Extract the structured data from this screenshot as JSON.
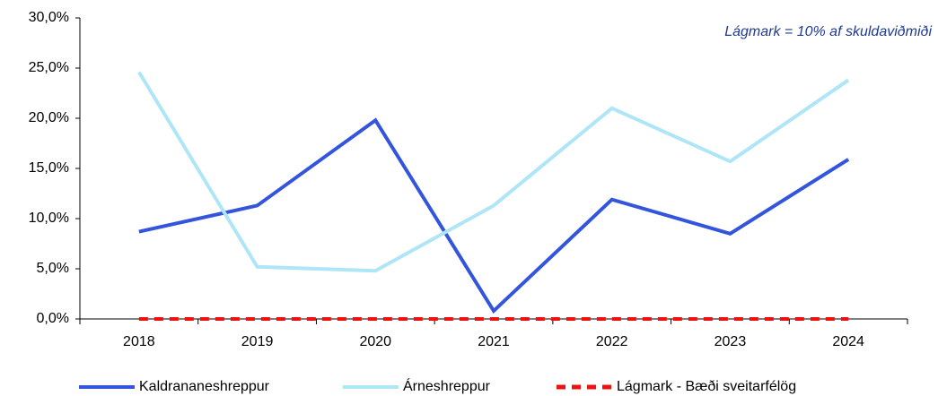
{
  "chart_data": {
    "type": "line",
    "annotation": "Lágmark = 10% af skuldaviðmiði",
    "categories": [
      "2018",
      "2019",
      "2020",
      "2021",
      "2022",
      "2023",
      "2024"
    ],
    "series": [
      {
        "name": "Kaldrananeshreppur",
        "color": "#3355dd",
        "style": "solid",
        "values": [
          8.7,
          11.3,
          19.8,
          0.8,
          11.9,
          8.5,
          15.9
        ]
      },
      {
        "name": "Árneshreppur",
        "color": "#aee6f8",
        "style": "solid",
        "values": [
          24.6,
          5.2,
          4.8,
          11.3,
          21.0,
          15.7,
          23.8
        ]
      },
      {
        "name": "Lágmark - Bæði sveitarfélög",
        "color": "#ee1111",
        "style": "dashed",
        "values": [
          0,
          0,
          0,
          0,
          0,
          0,
          0
        ]
      }
    ],
    "ylim": [
      0,
      30
    ],
    "yticks": [
      {
        "value": 0,
        "label": "0,0%"
      },
      {
        "value": 5,
        "label": "5,0%"
      },
      {
        "value": 10,
        "label": "10,0%"
      },
      {
        "value": 15,
        "label": "15,0%"
      },
      {
        "value": 20,
        "label": "20,0%"
      },
      {
        "value": 25,
        "label": "25,0%"
      },
      {
        "value": 30,
        "label": "30,0%"
      }
    ],
    "legend": "bottom"
  }
}
